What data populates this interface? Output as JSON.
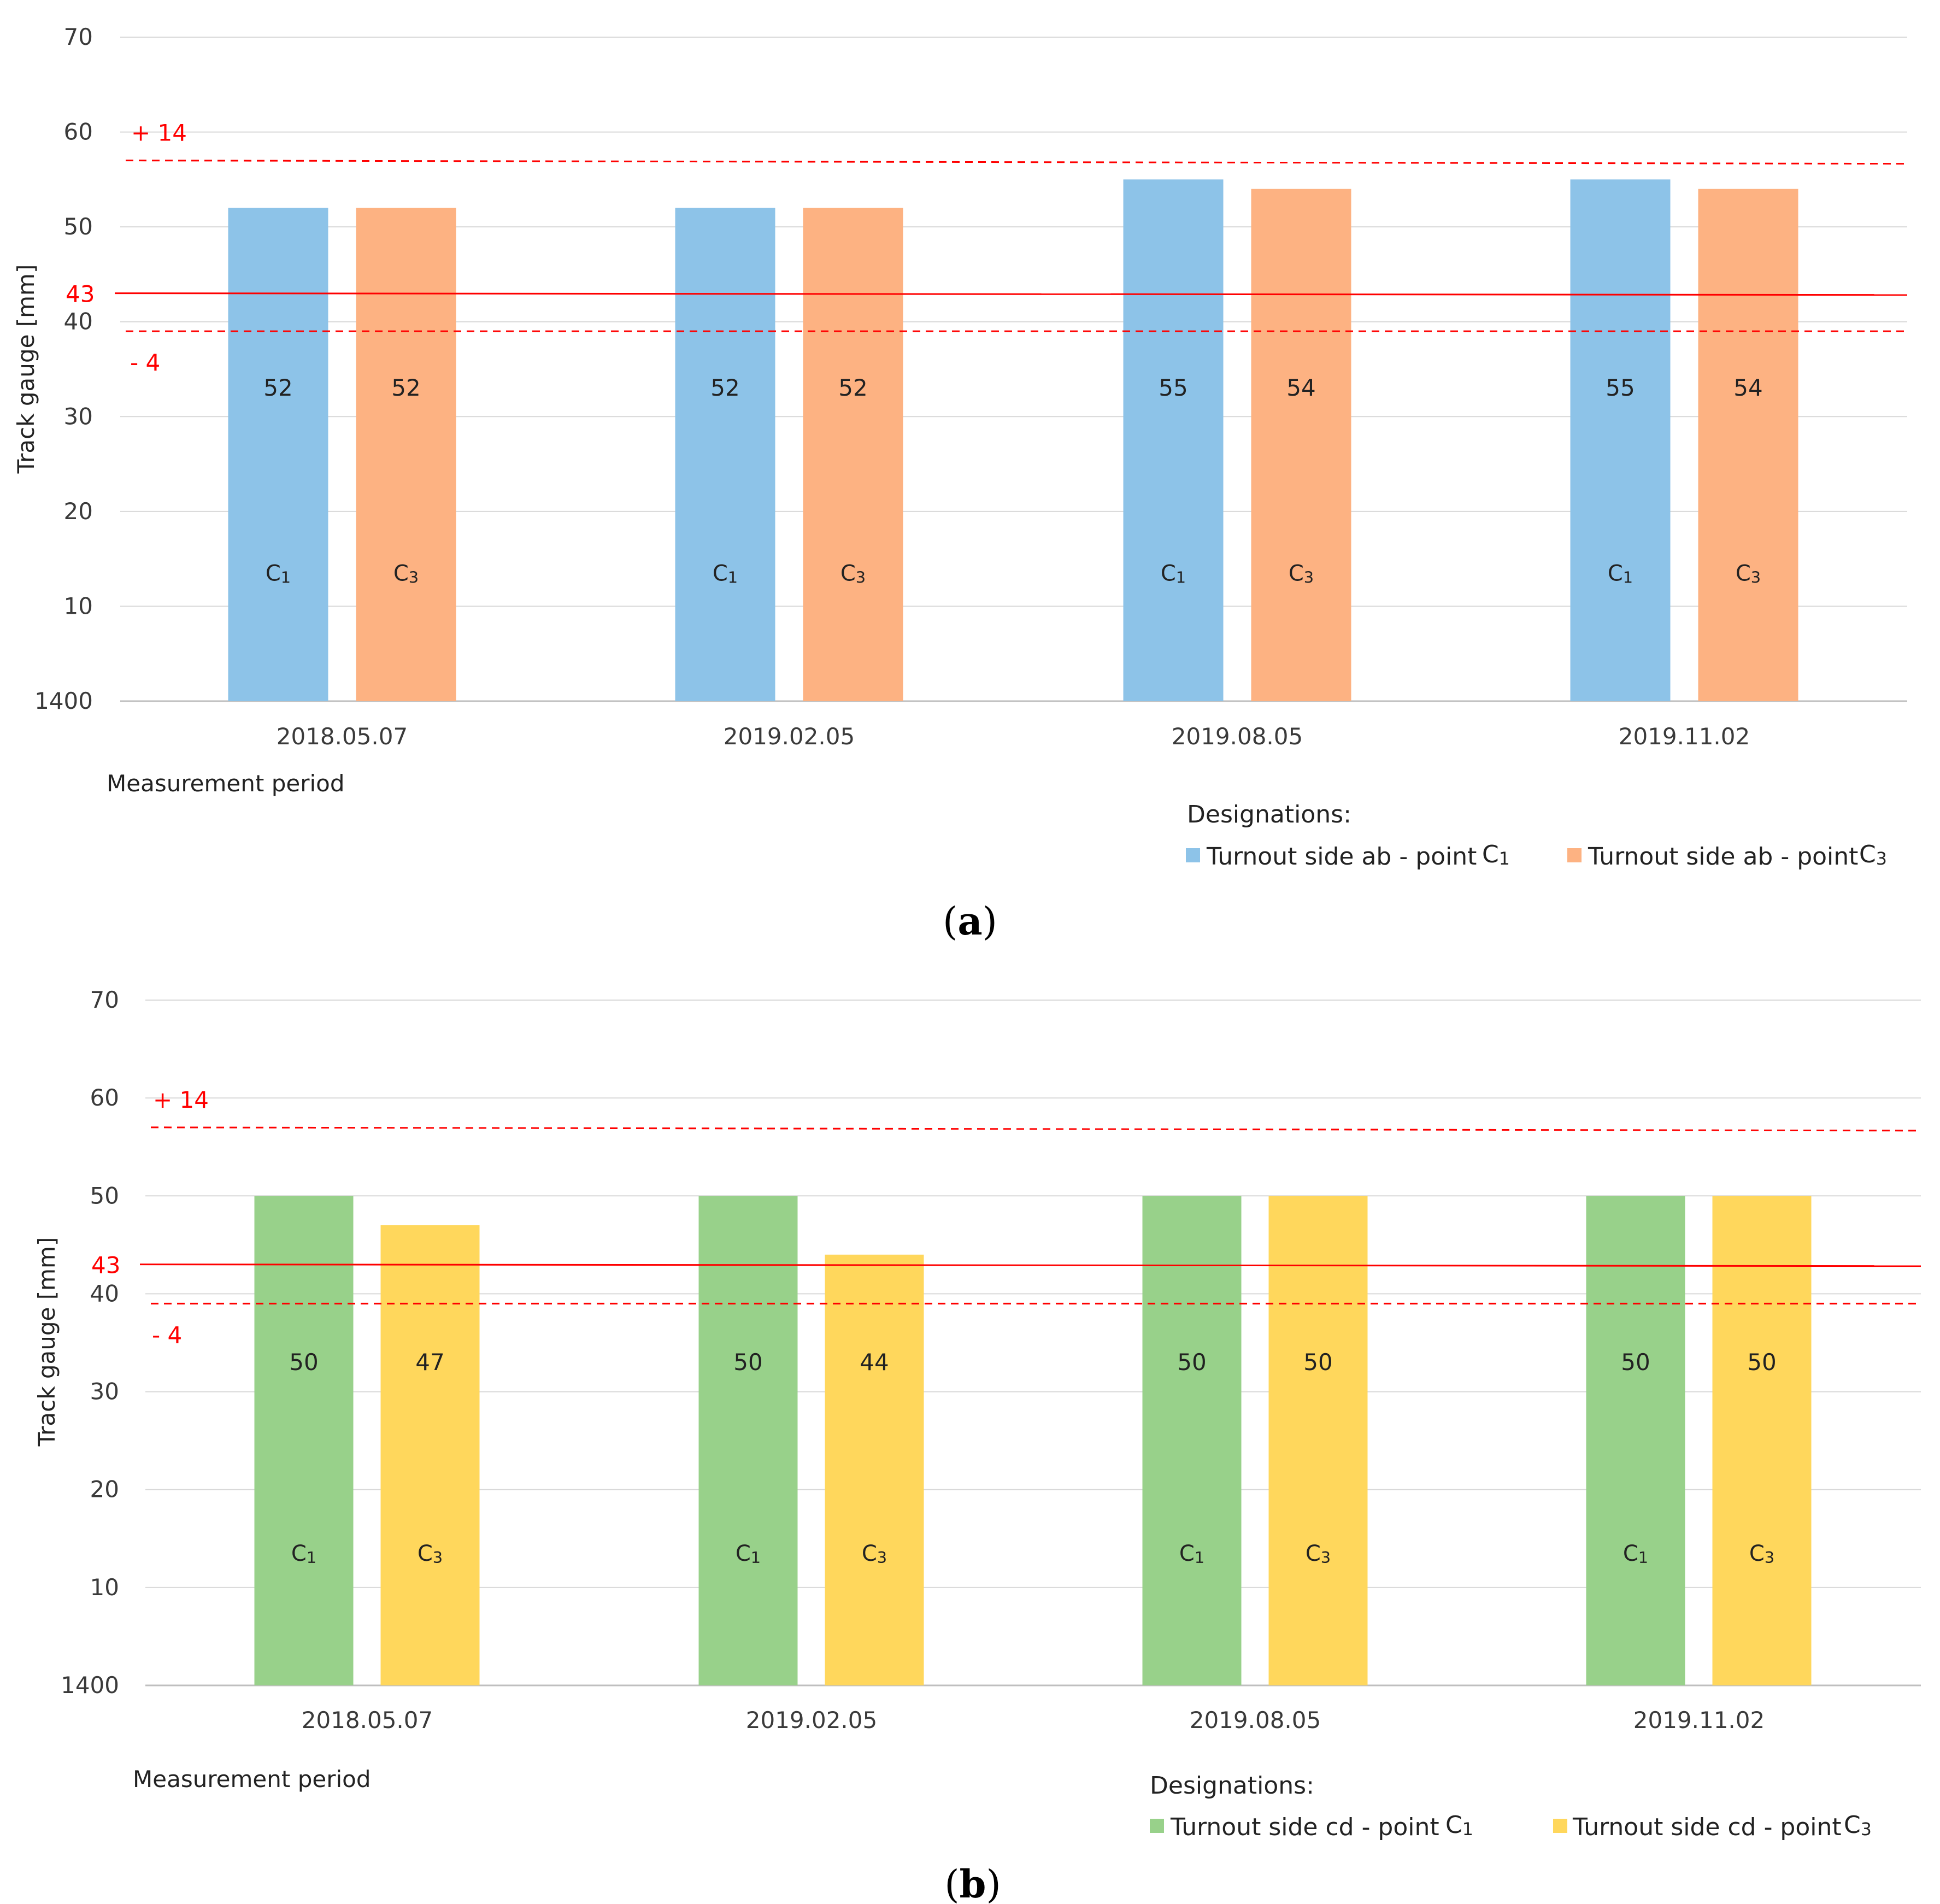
{
  "chart_data": [
    {
      "type": "bar",
      "caption_open": "(",
      "caption_letter": "a",
      "caption_close": ")",
      "ylabel": "Track gauge [mm]",
      "xlabel": "Measurement period",
      "y_ticks": [
        "1400",
        "10",
        "20",
        "30",
        "40",
        "50",
        "60",
        "70"
      ],
      "ylim": [
        0,
        70
      ],
      "categories": [
        "2018.05.07",
        "2019.02.05",
        "2019.08.05",
        "2019.11.02"
      ],
      "series": [
        {
          "name": "Turnout side ab - point",
          "point": "C1",
          "color": "#8dc3e8",
          "values": [
            52,
            52,
            55,
            55
          ]
        },
        {
          "name": "Turnout side ab - point",
          "point": "C3",
          "color": "#fdb282",
          "values": [
            52,
            52,
            54,
            54
          ]
        }
      ],
      "bar_point_labels": [
        "C1",
        "C3"
      ],
      "reference_lines": {
        "nominal": {
          "value": 43,
          "label": "43"
        },
        "upper": {
          "value": 57,
          "label": "+ 14"
        },
        "lower": {
          "value": 39,
          "label": "- 4"
        }
      },
      "legend_title": "Designations:"
    },
    {
      "type": "bar",
      "caption_open": "(",
      "caption_letter": "b",
      "caption_close": ")",
      "ylabel": "Track gauge [mm]",
      "xlabel": "Measurement period",
      "y_ticks": [
        "1400",
        "10",
        "20",
        "30",
        "40",
        "50",
        "60",
        "70"
      ],
      "ylim": [
        0,
        70
      ],
      "categories": [
        "2018.05.07",
        "2019.02.05",
        "2019.08.05",
        "2019.11.02"
      ],
      "series": [
        {
          "name": "Turnout side cd - point",
          "point": "C1",
          "color": "#98d18a",
          "values": [
            50,
            50,
            50,
            50
          ]
        },
        {
          "name": "Turnout side cd - point",
          "point": "C3",
          "color": "#ffd75c",
          "values": [
            47,
            44,
            50,
            50
          ]
        }
      ],
      "bar_point_labels": [
        "C1",
        "C3"
      ],
      "reference_lines": {
        "nominal": {
          "value": 43,
          "label": "43"
        },
        "upper": {
          "value": 57,
          "label": "+ 14"
        },
        "lower": {
          "value": 39,
          "label": "- 4"
        }
      },
      "legend_title": "Designations:"
    }
  ]
}
